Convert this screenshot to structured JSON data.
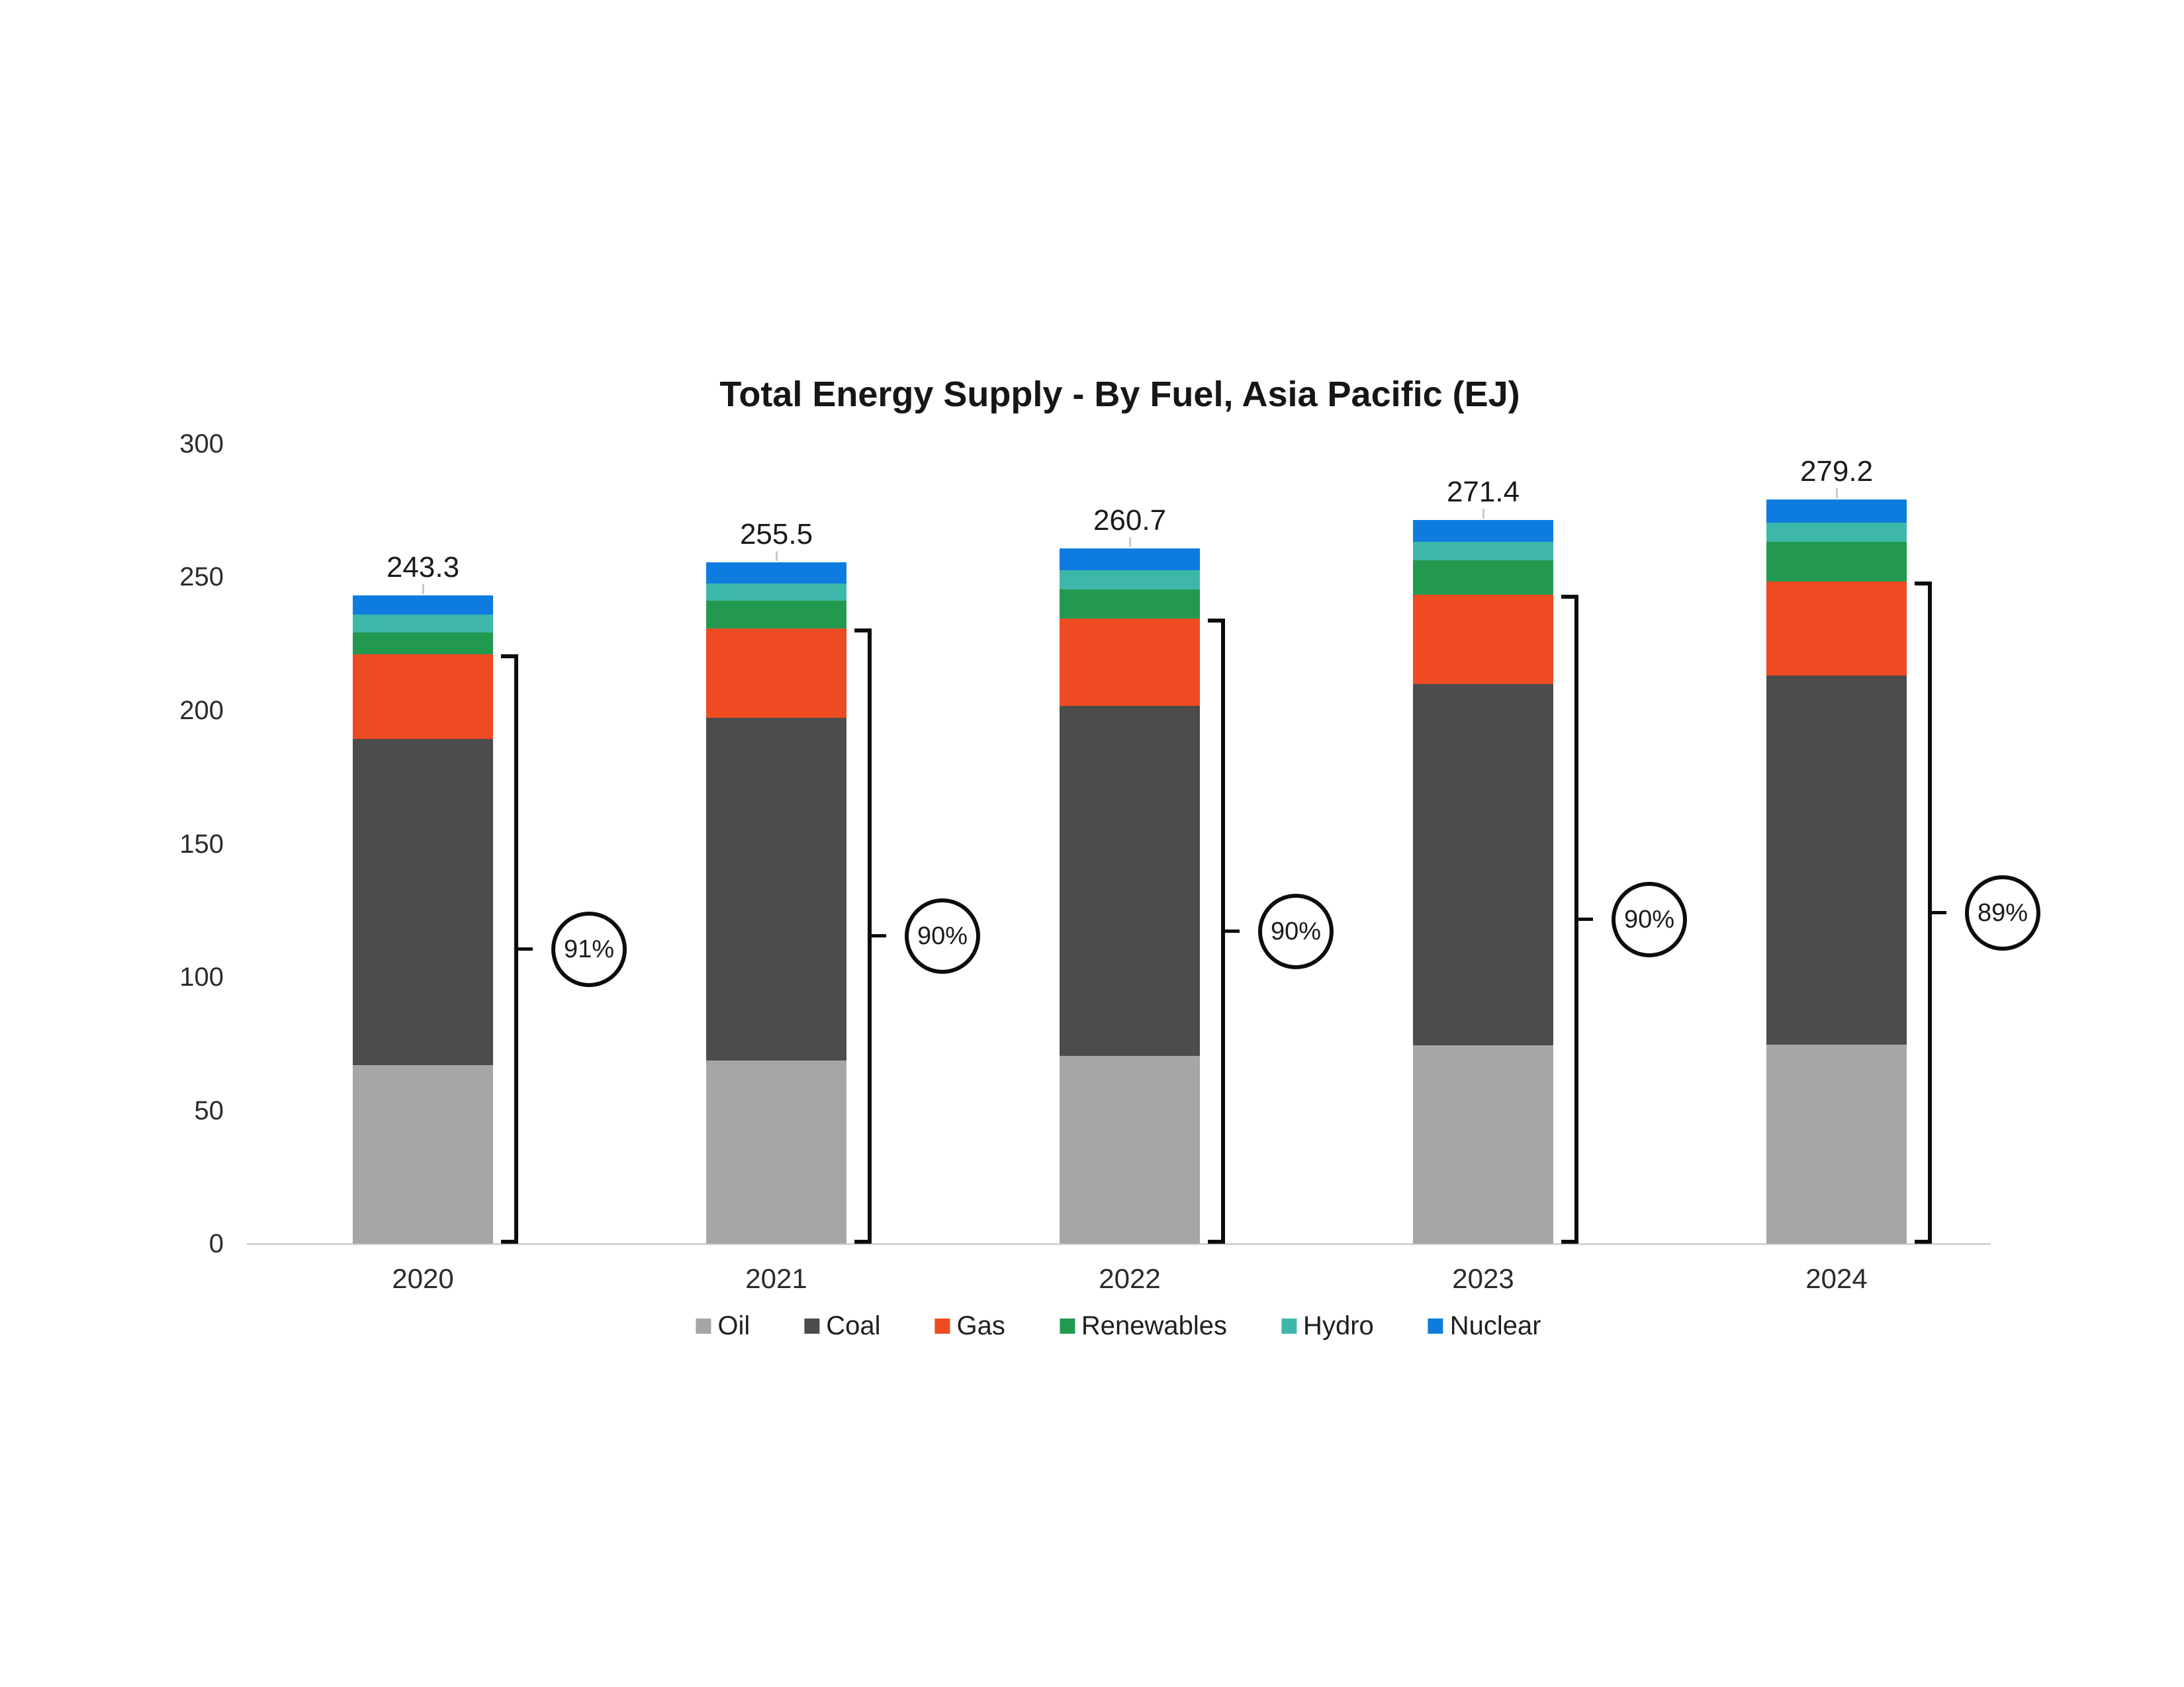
{
  "title": "Total Energy Supply - By Fuel, Asia Pacific (EJ)",
  "y_axis": {
    "tick_labels": [
      "300",
      "250",
      "200",
      "150",
      "100",
      "50",
      "0"
    ]
  },
  "chart_data": {
    "type": "bar",
    "stacked": true,
    "title": "Total Energy Supply - By Fuel, Asia Pacific (EJ)",
    "unit": "EJ",
    "categories": [
      "2020",
      "2021",
      "2022",
      "2023",
      "2024"
    ],
    "series": [
      {
        "name": "Oil",
        "color": "#a6a6a6",
        "values": [
          67.0,
          68.7,
          70.5,
          74.5,
          74.8
        ]
      },
      {
        "name": "Coal",
        "color": "#4c4c4c",
        "values": [
          122.3,
          128.6,
          131.2,
          135.4,
          138.4
        ]
      },
      {
        "name": "Gas",
        "color": "#ef4b23",
        "values": [
          31.8,
          33.5,
          32.8,
          33.5,
          35.2
        ]
      },
      {
        "name": "Renewables",
        "color": "#22994f",
        "values": [
          8.2,
          10.4,
          10.9,
          12.9,
          14.9
        ]
      },
      {
        "name": "Hydro",
        "color": "#3eb7ab",
        "values": [
          6.7,
          6.4,
          7.2,
          7.0,
          7.2
        ]
      },
      {
        "name": "Nuclear",
        "color": "#0e7cdf",
        "values": [
          7.3,
          7.9,
          8.1,
          8.1,
          8.7
        ]
      }
    ],
    "totals": [
      "243.3",
      "255.5",
      "260.7",
      "271.4",
      "279.2"
    ],
    "fossil_share_labels": [
      "91%",
      "90%",
      "90%",
      "90%",
      "89%"
    ],
    "fossil_series": [
      "Oil",
      "Coal",
      "Gas"
    ],
    "ylim": [
      0,
      300
    ],
    "ytick_interval": 50,
    "grid": false,
    "legend_position": "bottom",
    "annotation_style": "right-bracket-with-percent-circle"
  }
}
